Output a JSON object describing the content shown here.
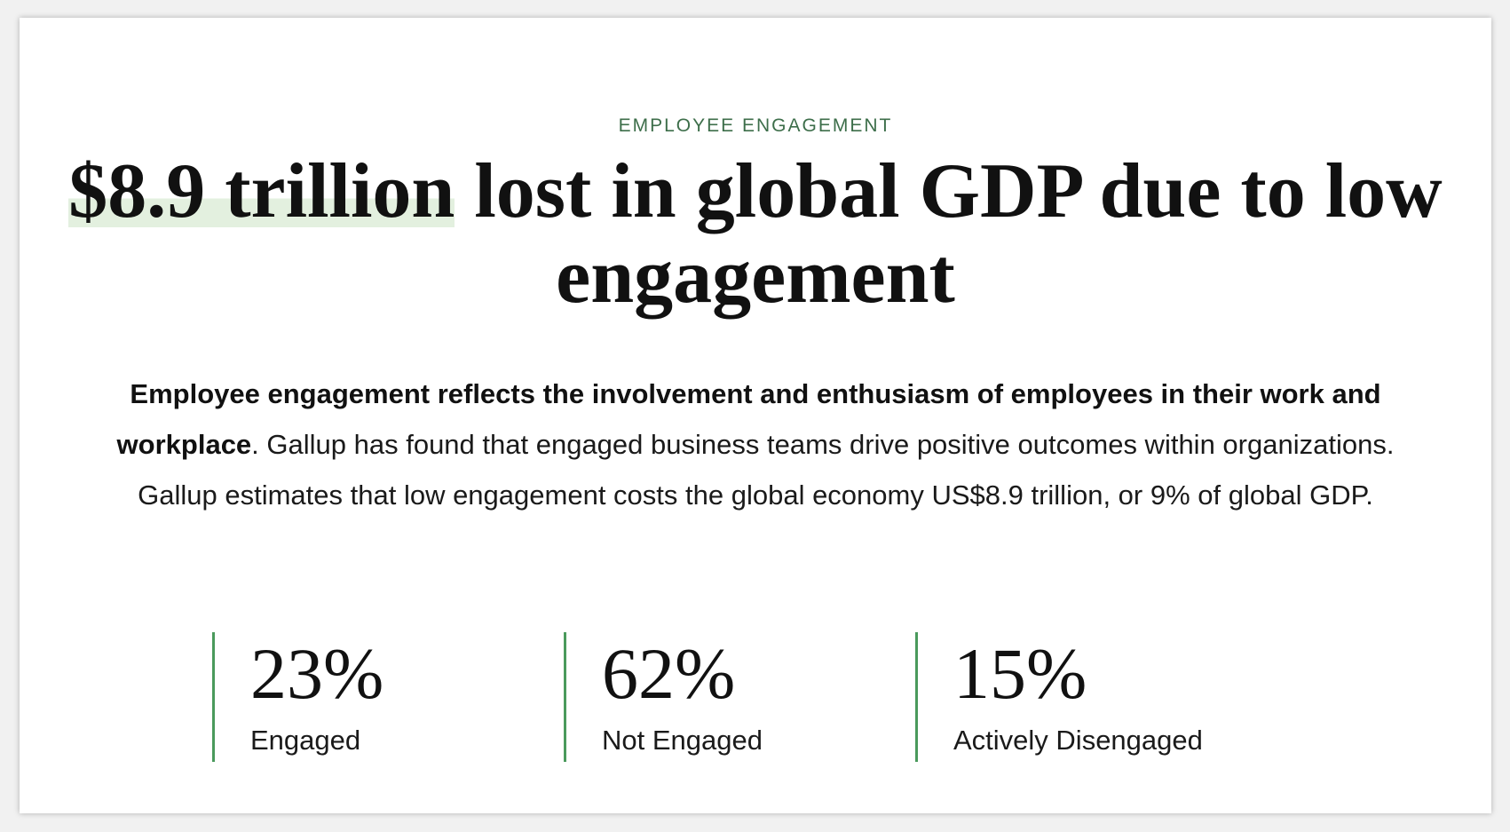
{
  "eyebrow": "EMPLOYEE ENGAGEMENT",
  "headline": {
    "highlight": "$8.9 trillion",
    "rest": " lost in global GDP due to low engagement"
  },
  "intro": {
    "bold": "Employee engagement reflects the involvement and enthusiasm of employees in their work and workplace",
    "regular": ". Gallup has found that engaged business teams drive positive outcomes within organizations. Gallup estimates that low engagement costs the global economy US$8.9 trillion, or 9% of global GDP."
  },
  "stats": [
    {
      "value": "23%",
      "label": "Engaged"
    },
    {
      "value": "62%",
      "label": "Not Engaged"
    },
    {
      "value": "15%",
      "label": "Actively Disengaged"
    }
  ],
  "colors": {
    "accent": "#4a9a5c",
    "eyebrow": "#3d6e4a",
    "highlight": "#e3f0df"
  }
}
